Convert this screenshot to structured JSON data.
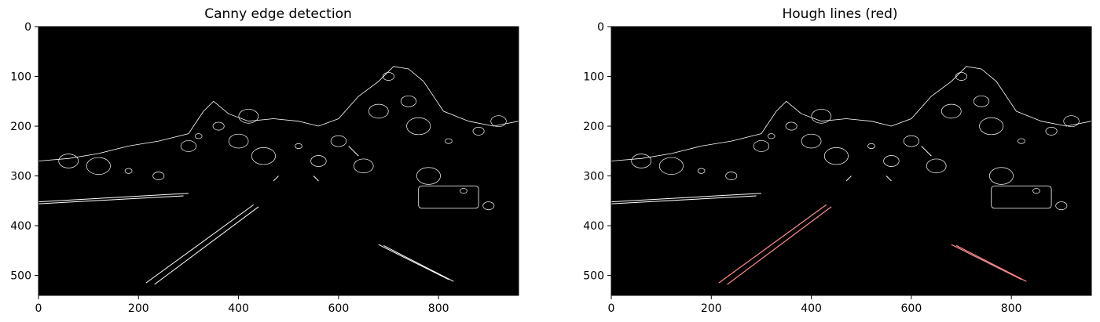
{
  "figure": {
    "panels": [
      {
        "title": "Canny edge detection",
        "x_ticks": [
          "0",
          "200",
          "400",
          "600",
          "800"
        ],
        "y_ticks": [
          "0",
          "100",
          "200",
          "300",
          "400",
          "500"
        ],
        "line_color": "#ffffff"
      },
      {
        "title": "Hough lines (red)",
        "x_ticks": [
          "0",
          "200",
          "400",
          "600",
          "800"
        ],
        "y_ticks": [
          "0",
          "100",
          "200",
          "300",
          "400",
          "500"
        ],
        "line_color": "#ff6464"
      }
    ]
  }
}
